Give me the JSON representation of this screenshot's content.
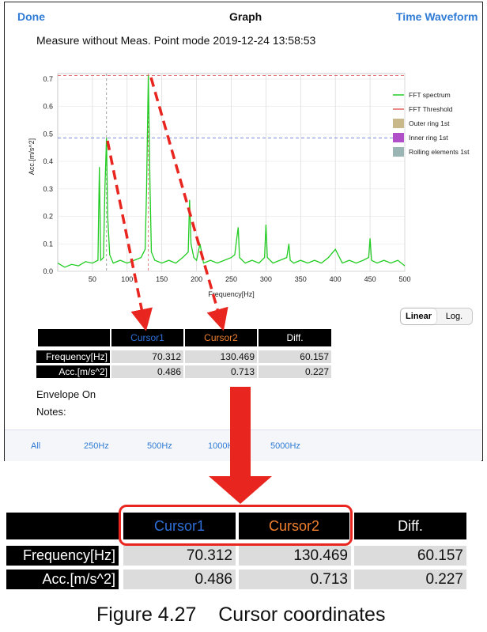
{
  "nav": {
    "done": "Done",
    "title": "Graph",
    "right": "Time Waveform"
  },
  "meta": {
    "text": "Measure without Meas. Point mode  2019-12-24 13:58:53"
  },
  "chart_data": {
    "type": "line",
    "xlabel": "Frequency[Hz]",
    "ylabel": "Acc.[m/s^2]",
    "xlim": [
      0,
      500
    ],
    "ylim": [
      0,
      0.72
    ],
    "xticks": [
      50,
      100,
      150,
      200,
      250,
      300,
      350,
      400,
      450,
      500
    ],
    "yticks": [
      0.0,
      0.1,
      0.2,
      0.3,
      0.4,
      0.5,
      0.6,
      0.7
    ],
    "grid": true,
    "legend_position": "right",
    "legend": [
      "FFT spectrum",
      "FFT Threshold",
      "Outer ring 1st",
      "Inner ring 1st",
      "Rolling elements 1st"
    ],
    "legend_colors": [
      "#22cc22",
      "#e06060",
      "#c8b88a",
      "#b04fc8",
      "#9bb4b4"
    ],
    "threshold": 0.713,
    "cursor_level": 0.486,
    "cursors_x": [
      70.312,
      130.469
    ],
    "series": [
      {
        "name": "FFT spectrum",
        "x": [
          0,
          10,
          20,
          30,
          40,
          50,
          58,
          60,
          62,
          66,
          68,
          70.3,
          72,
          75,
          80,
          90,
          100,
          110,
          120,
          126,
          128,
          130.5,
          133,
          135,
          140,
          150,
          160,
          170,
          180,
          188,
          190,
          192,
          196,
          200,
          205,
          210,
          220,
          230,
          240,
          250,
          255,
          258,
          260,
          262,
          270,
          280,
          290,
          298,
          300,
          302,
          310,
          320,
          330,
          333,
          335,
          340,
          350,
          360,
          370,
          380,
          390,
          400,
          410,
          420,
          430,
          440,
          448,
          450,
          452,
          460,
          470,
          480,
          490,
          500
        ],
        "values": [
          0.03,
          0.015,
          0.025,
          0.02,
          0.035,
          0.03,
          0.04,
          0.38,
          0.04,
          0.05,
          0.3,
          0.486,
          0.2,
          0.06,
          0.03,
          0.04,
          0.03,
          0.04,
          0.05,
          0.08,
          0.3,
          0.713,
          0.3,
          0.07,
          0.04,
          0.03,
          0.04,
          0.03,
          0.05,
          0.07,
          0.26,
          0.1,
          0.05,
          0.04,
          0.1,
          0.03,
          0.04,
          0.03,
          0.04,
          0.05,
          0.06,
          0.12,
          0.16,
          0.05,
          0.03,
          0.04,
          0.03,
          0.05,
          0.17,
          0.05,
          0.03,
          0.04,
          0.05,
          0.1,
          0.04,
          0.03,
          0.04,
          0.03,
          0.04,
          0.03,
          0.05,
          0.08,
          0.03,
          0.04,
          0.03,
          0.04,
          0.05,
          0.12,
          0.04,
          0.03,
          0.04,
          0.03,
          0.04,
          0.02
        ]
      }
    ]
  },
  "cursor_table": {
    "headers": [
      "Cursor1",
      "Cursor2",
      "Diff."
    ],
    "header_colors": [
      "#2f6fd8",
      "#f08030",
      "#ffffff"
    ],
    "rows": [
      {
        "label": "Frequency[Hz]",
        "values": [
          "70.312",
          "130.469",
          "60.157"
        ]
      },
      {
        "label": "Acc.[m/s^2]",
        "values": [
          "0.486",
          "0.713",
          "0.227"
        ]
      }
    ]
  },
  "scale": {
    "linear": "Linear",
    "log": "Log."
  },
  "info": {
    "envelope": "Envelope On",
    "notes": "Notes:"
  },
  "bottom": {
    "items": [
      "All",
      "250Hz",
      "500Hz",
      "1000Hz",
      "5000Hz"
    ]
  },
  "caption": "Figure 4.27    Cursor coordinates",
  "colors": {
    "accent": "#2f7bd6",
    "annotation": "#e8261f"
  }
}
